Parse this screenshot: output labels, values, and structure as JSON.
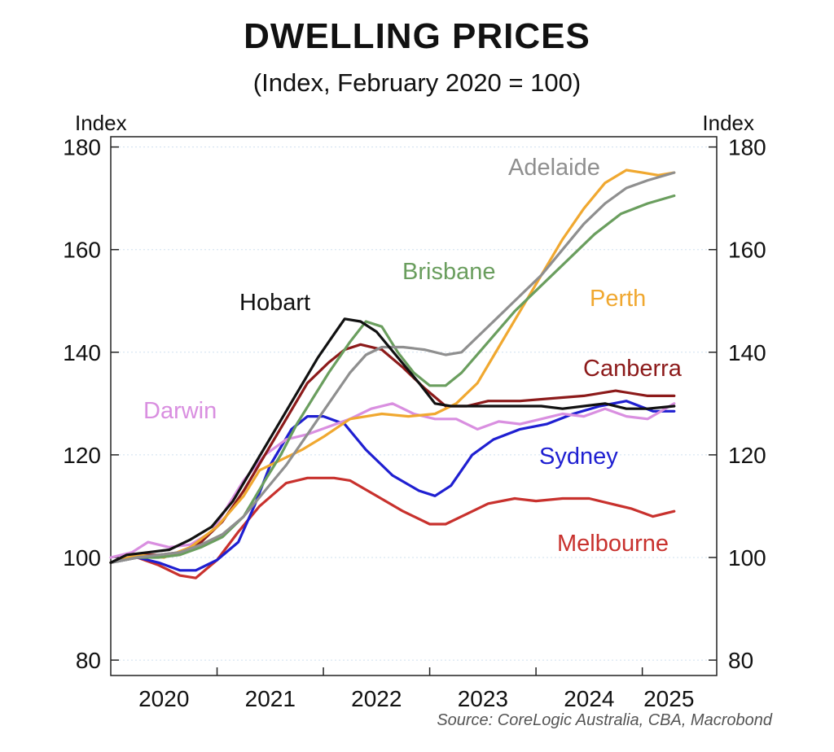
{
  "chart_data": {
    "type": "line",
    "title": "DWELLING PRICES",
    "subtitle": "(Index, February 2020 = 100)",
    "y_axis_left_label": "Index",
    "y_axis_right_label": "Index",
    "xlim": [
      2019.75,
      2025.45
    ],
    "ylim": [
      77,
      182
    ],
    "y_ticks": [
      80,
      100,
      120,
      140,
      160,
      180
    ],
    "x_tick_labels": [
      {
        "label": "2020",
        "x": 2020.25
      },
      {
        "label": "2021",
        "x": 2021.25
      },
      {
        "label": "2022",
        "x": 2022.25
      },
      {
        "label": "2023",
        "x": 2023.25
      },
      {
        "label": "2024",
        "x": 2024.25
      },
      {
        "label": "2025",
        "x": 2025.0
      }
    ],
    "x_ticks": [
      2020.75,
      2021.75,
      2022.75,
      2023.75,
      2024.75
    ],
    "grid": true,
    "series": [
      {
        "name": "Melbourne",
        "color": "#c8312d",
        "x": [
          2019.75,
          2020.0,
          2020.2,
          2020.4,
          2020.55,
          2020.75,
          2020.95,
          2021.15,
          2021.4,
          2021.6,
          2021.85,
          2022.0,
          2022.25,
          2022.5,
          2022.75,
          2022.9,
          2023.1,
          2023.3,
          2023.55,
          2023.75,
          2024.0,
          2024.25,
          2024.45,
          2024.65,
          2024.85,
          2025.05
        ],
        "values": [
          99,
          100,
          98.5,
          96.5,
          96,
          99.5,
          105,
          110,
          114.5,
          115.5,
          115.5,
          115,
          112,
          109,
          106.5,
          106.5,
          108.5,
          110.5,
          111.5,
          111,
          111.5,
          111.5,
          110.5,
          109.5,
          108,
          109
        ]
      },
      {
        "name": "Sydney",
        "color": "#1f1fd1",
        "x": [
          2019.75,
          2020.0,
          2020.2,
          2020.4,
          2020.55,
          2020.75,
          2020.95,
          2021.1,
          2021.25,
          2021.45,
          2021.6,
          2021.75,
          2021.95,
          2022.15,
          2022.4,
          2022.65,
          2022.8,
          2022.95,
          2023.15,
          2023.35,
          2023.6,
          2023.85,
          2024.1,
          2024.35,
          2024.6,
          2024.85,
          2025.05
        ],
        "values": [
          99,
          100,
          99,
          97.5,
          97.5,
          99.5,
          103,
          110,
          118,
          125,
          127.5,
          127.5,
          126,
          121,
          116,
          113,
          112,
          114,
          120,
          123,
          125,
          126,
          128,
          129.5,
          130.5,
          128.5,
          128.5
        ]
      },
      {
        "name": "Darwin",
        "color": "#d98fe0",
        "x": [
          2019.75,
          2019.95,
          2020.1,
          2020.3,
          2020.5,
          2020.7,
          2020.85,
          2021.0,
          2021.2,
          2021.4,
          2021.6,
          2021.8,
          2022.0,
          2022.2,
          2022.4,
          2022.6,
          2022.8,
          2023.0,
          2023.2,
          2023.4,
          2023.6,
          2023.8,
          2024.0,
          2024.2,
          2024.4,
          2024.6,
          2024.8,
          2025.05
        ],
        "values": [
          100,
          101,
          103,
          102,
          102.5,
          105,
          110,
          115,
          120,
          123,
          124,
          125.5,
          127,
          129,
          130,
          128,
          127,
          127,
          125,
          126.5,
          126,
          127,
          128,
          127.5,
          129,
          127.5,
          127,
          130
        ]
      },
      {
        "name": "Canberra",
        "color": "#8c1a1a",
        "x": [
          2019.75,
          2020.0,
          2020.2,
          2020.4,
          2020.6,
          2020.8,
          2021.0,
          2021.2,
          2021.4,
          2021.6,
          2021.8,
          2021.95,
          2022.1,
          2022.3,
          2022.5,
          2022.7,
          2022.9,
          2023.1,
          2023.3,
          2023.6,
          2023.9,
          2024.2,
          2024.5,
          2024.8,
          2025.05
        ],
        "values": [
          99,
          100.5,
          100.5,
          101,
          103,
          107,
          113,
          120,
          127,
          134,
          138,
          140.5,
          141.5,
          140.5,
          137,
          133,
          129.5,
          129.5,
          130.5,
          130.5,
          131,
          131.5,
          132.5,
          131.5,
          131.5
        ]
      },
      {
        "name": "Perth",
        "color": "#f0a830",
        "x": [
          2019.75,
          2020.0,
          2020.25,
          2020.5,
          2020.75,
          2021.0,
          2021.15,
          2021.35,
          2021.55,
          2021.75,
          2022.0,
          2022.3,
          2022.55,
          2022.8,
          2023.0,
          2023.2,
          2023.4,
          2023.6,
          2023.8,
          2024.0,
          2024.2,
          2024.4,
          2024.6,
          2024.75,
          2024.9,
          2025.05
        ],
        "values": [
          99,
          100.5,
          100,
          102,
          106,
          112,
          117,
          119,
          121,
          123.5,
          127,
          128,
          127.5,
          128,
          130,
          134,
          141,
          148,
          155,
          162,
          168,
          173,
          175.5,
          175,
          174.5,
          175
        ]
      },
      {
        "name": "Brisbane",
        "color": "#6a9e5e",
        "x": [
          2019.75,
          2020.0,
          2020.2,
          2020.4,
          2020.6,
          2020.8,
          2021.0,
          2021.2,
          2021.35,
          2021.5,
          2021.65,
          2021.8,
          2022.0,
          2022.15,
          2022.3,
          2022.45,
          2022.6,
          2022.75,
          2022.9,
          2023.05,
          2023.3,
          2023.55,
          2023.8,
          2024.05,
          2024.3,
          2024.55,
          2024.8,
          2025.05
        ],
        "values": [
          99,
          100,
          100,
          100.5,
          102,
          104,
          108,
          115,
          120,
          126,
          131,
          136,
          142,
          146,
          145,
          140,
          136,
          133.5,
          133.5,
          136,
          142,
          148,
          153,
          158,
          163,
          167,
          169,
          170.5
        ]
      },
      {
        "name": "Adelaide",
        "color": "#8f8f8f",
        "x": [
          2019.75,
          2020.0,
          2020.2,
          2020.4,
          2020.6,
          2020.8,
          2021.0,
          2021.2,
          2021.4,
          2021.6,
          2021.8,
          2022.0,
          2022.15,
          2022.3,
          2022.5,
          2022.7,
          2022.9,
          2023.05,
          2023.2,
          2023.4,
          2023.6,
          2023.8,
          2024.0,
          2024.2,
          2024.4,
          2024.6,
          2024.8,
          2025.05
        ],
        "values": [
          99,
          100,
          100.5,
          101,
          102.5,
          104.5,
          108,
          113,
          118,
          124,
          130,
          136,
          139.5,
          141,
          141,
          140.5,
          139.5,
          140,
          143,
          147,
          151,
          155,
          160,
          165,
          169,
          172,
          173.5,
          175
        ]
      },
      {
        "name": "Hobart",
        "color": "#111111",
        "x": [
          2019.75,
          2019.9,
          2020.1,
          2020.3,
          2020.5,
          2020.7,
          2020.9,
          2021.1,
          2021.3,
          2021.5,
          2021.7,
          2021.85,
          2021.95,
          2022.1,
          2022.25,
          2022.45,
          2022.65,
          2022.8,
          2022.95,
          2023.2,
          2023.5,
          2023.8,
          2024.0,
          2024.2,
          2024.4,
          2024.6,
          2024.8,
          2025.05
        ],
        "values": [
          99,
          100.5,
          101,
          101.5,
          103.5,
          106,
          111,
          118,
          125,
          132,
          139,
          143.5,
          146.5,
          146,
          144,
          139,
          134,
          130,
          129.5,
          129.5,
          129.5,
          129.5,
          129,
          129.5,
          130,
          129,
          129,
          129.5
        ]
      }
    ],
    "annotations": [
      {
        "text": "Adelaide",
        "color": "#8f8f8f"
      },
      {
        "text": "Brisbane",
        "color": "#6a9e5e"
      },
      {
        "text": "Perth",
        "color": "#f0a830"
      },
      {
        "text": "Hobart",
        "color": "#111111"
      },
      {
        "text": "Canberra",
        "color": "#8c1a1a"
      },
      {
        "text": "Darwin",
        "color": "#d98fe0"
      },
      {
        "text": "Sydney",
        "color": "#1f1fd1"
      },
      {
        "text": "Melbourne",
        "color": "#c8312d"
      }
    ],
    "source": "Source: CoreLogic Australia, CBA, Macrobond"
  }
}
